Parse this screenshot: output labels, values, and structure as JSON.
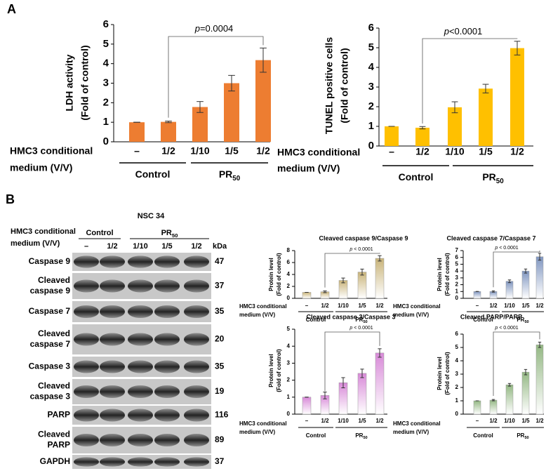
{
  "panels": {
    "a": "A",
    "b": "B"
  },
  "blot": {
    "title": "NSC 34",
    "condition": [
      "HMC3 conditional",
      "medium (V/V)"
    ],
    "groups": [
      {
        "label": "Control"
      },
      {
        "label": "PR",
        "sub": "50"
      }
    ],
    "lanes": [
      "–",
      "1/2",
      "1/10",
      "1/5",
      "1/2"
    ],
    "unit": "kDa",
    "rows": [
      {
        "label": [
          "Caspase 9"
        ],
        "kda": 47
      },
      {
        "label": [
          "Cleaved",
          "caspase 9"
        ],
        "kda": 37
      },
      {
        "label": [
          "Caspase 7"
        ],
        "kda": 35
      },
      {
        "label": [
          "Cleaved",
          "caspase 7"
        ],
        "kda": 20
      },
      {
        "label": [
          "Caspase 3"
        ],
        "kda": 35
      },
      {
        "label": [
          "Cleaved",
          "caspase 3"
        ],
        "kda": 19
      },
      {
        "label": [
          "PARP"
        ],
        "kda": 116
      },
      {
        "label": [
          "Cleaved",
          "PARP"
        ],
        "kda": 89
      },
      {
        "label": [
          "GAPDH"
        ],
        "kda": 37
      }
    ]
  },
  "chart_data": [
    {
      "type": "bar",
      "ylabel": [
        "LDH activity",
        "(Fold of control)"
      ],
      "xlabel": [
        "HMC3 conditional",
        "medium (V/V)"
      ],
      "categories": [
        "–",
        "1/2",
        "1/10",
        "1/5",
        "1/2"
      ],
      "values": [
        1,
        1.02,
        1.78,
        3.0,
        4.18
      ],
      "errors": [
        0,
        0.04,
        0.28,
        0.4,
        0.62
      ],
      "groups": [
        {
          "label": "Control"
        },
        {
          "label": "PR",
          "sub": "50"
        }
      ],
      "annotation": {
        "italic": "p",
        "text": "=0.0004"
      },
      "color": "#ed7d31",
      "gradient": false,
      "ylim": [
        0,
        6
      ],
      "yticks": [
        0,
        1,
        2,
        3,
        4,
        5,
        6
      ]
    },
    {
      "type": "bar",
      "ylabel": [
        "TUNEL positive cells",
        "(Fold of control)"
      ],
      "xlabel": [
        "HMC3 conditional",
        "medium (V/V)"
      ],
      "categories": [
        "–",
        "1/2",
        "1/10",
        "1/5",
        "1/2"
      ],
      "values": [
        1,
        0.93,
        1.97,
        2.92,
        4.98
      ],
      "errors": [
        0,
        0.06,
        0.28,
        0.22,
        0.35
      ],
      "groups": [
        {
          "label": "Control"
        },
        {
          "label": "PR",
          "sub": "50"
        }
      ],
      "annotation": {
        "italic": "p",
        "text": "<0.0001"
      },
      "color": "#ffc000",
      "gradient": false,
      "ylim": [
        0,
        6
      ],
      "yticks": [
        0,
        1,
        2,
        3,
        4,
        5,
        6
      ]
    },
    {
      "type": "bar",
      "title": "Cleaved caspase 9/Caspase 9",
      "ylabel": [
        "Protein level",
        "(Fold of control)"
      ],
      "xlabel": [
        "HMC3 conditional",
        "medium (V/V)"
      ],
      "categories": [
        "–",
        "1/2",
        "1/10",
        "1/5",
        "1/2"
      ],
      "values": [
        1,
        1.1,
        3.0,
        4.4,
        6.7
      ],
      "errors": [
        0,
        0.15,
        0.4,
        0.5,
        0.45
      ],
      "groups": [
        {
          "label": "Control"
        },
        {
          "label": "PR",
          "sub": "50"
        }
      ],
      "annotation": {
        "italic": "p",
        "text": " < 0.0001"
      },
      "color": "#c9b47a",
      "gradient": true,
      "ylim": [
        0,
        8
      ],
      "yticks": [
        0,
        2,
        4,
        6,
        8
      ]
    },
    {
      "type": "bar",
      "title": "Cleaved caspase 7/Caspase 7",
      "ylabel": [
        "Protein level",
        "(Fold of control)"
      ],
      "xlabel": [
        "HMC3 conditional",
        "medium (V/V)"
      ],
      "categories": [
        "–",
        "1/2",
        "1/10",
        "1/5",
        "1/2"
      ],
      "values": [
        1,
        1.0,
        2.5,
        4.0,
        6.1
      ],
      "errors": [
        0,
        0.1,
        0.2,
        0.3,
        0.5
      ],
      "groups": [
        {
          "label": "Control"
        },
        {
          "label": "PR",
          "sub": "50"
        }
      ],
      "annotation": {
        "italic": "p",
        "text": " < 0.0001"
      },
      "color": "#8096c0",
      "gradient": true,
      "ylim": [
        0,
        7
      ],
      "yticks": [
        0,
        1,
        2,
        3,
        4,
        5,
        6,
        7
      ]
    },
    {
      "type": "bar",
      "title": "Cleaved caspase 3/Caspase 3",
      "ylabel": [
        "Protein level",
        "(Fold of control)"
      ],
      "xlabel": [
        "HMC3 conditional",
        "medium (V/V)"
      ],
      "categories": [
        "–",
        "1/2",
        "1/10",
        "1/5",
        "1/2"
      ],
      "values": [
        1,
        1.1,
        1.85,
        2.4,
        3.6
      ],
      "errors": [
        0,
        0.2,
        0.3,
        0.25,
        0.25
      ],
      "groups": [
        {
          "label": "Control"
        },
        {
          "label": "PR",
          "sub": "50"
        }
      ],
      "annotation": {
        "italic": "p",
        "text": " < 0.0001"
      },
      "color": "#d88ad8",
      "gradient": true,
      "ylim": [
        0,
        5
      ],
      "yticks": [
        0,
        1,
        2,
        3,
        4,
        5
      ]
    },
    {
      "type": "bar",
      "title": "Cleaved PARP/PARP",
      "ylabel": [
        "Protein level",
        "(Fold of control)"
      ],
      "xlabel": [
        "HMC3 conditional",
        "medium (V/V)"
      ],
      "categories": [
        "–",
        "1/2",
        "1/10",
        "1/5",
        "1/2"
      ],
      "values": [
        1,
        1.05,
        2.2,
        3.15,
        5.2
      ],
      "errors": [
        0,
        0.05,
        0.1,
        0.2,
        0.2
      ],
      "groups": [
        {
          "label": "Control"
        },
        {
          "label": "PR",
          "sub": "50"
        }
      ],
      "annotation": {
        "italic": "p",
        "text": " < 0.0001"
      },
      "color": "#94b884",
      "gradient": true,
      "ylim": [
        0,
        6
      ],
      "yticks": [
        0,
        1,
        2,
        3,
        4,
        5,
        6
      ]
    }
  ]
}
